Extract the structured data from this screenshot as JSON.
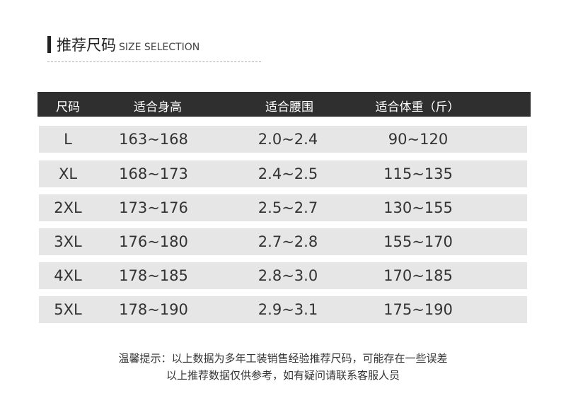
{
  "title": {
    "cn": "推荐尺码",
    "en": "SIZE SELECTION"
  },
  "table": {
    "headers": [
      "尺码",
      "适合身高",
      "适合腰围",
      "适合体重（斤）"
    ],
    "rows": [
      [
        "L",
        "163~168",
        "2.0~2.4",
        "90~120"
      ],
      [
        "XL",
        "168~173",
        "2.4~2.5",
        "115~135"
      ],
      [
        "2XL",
        "173~176",
        "2.5~2.7",
        "130~155"
      ],
      [
        "3XL",
        "176~180",
        "2.7~2.8",
        "155~170"
      ],
      [
        "4XL",
        "178~185",
        "2.8~3.0",
        "170~185"
      ],
      [
        "5XL",
        "178~190",
        "2.9~3.1",
        "175~190"
      ]
    ]
  },
  "notes": [
    "温馨提示：以上数据为多年工装销售经验推荐尺码，可能存在一些误差",
    "以上推荐数据仅供参考，如有疑问请联系客服人员"
  ],
  "colors": {
    "header_bg": "#2f2f2f",
    "row_bg": "#e6e6e6"
  }
}
